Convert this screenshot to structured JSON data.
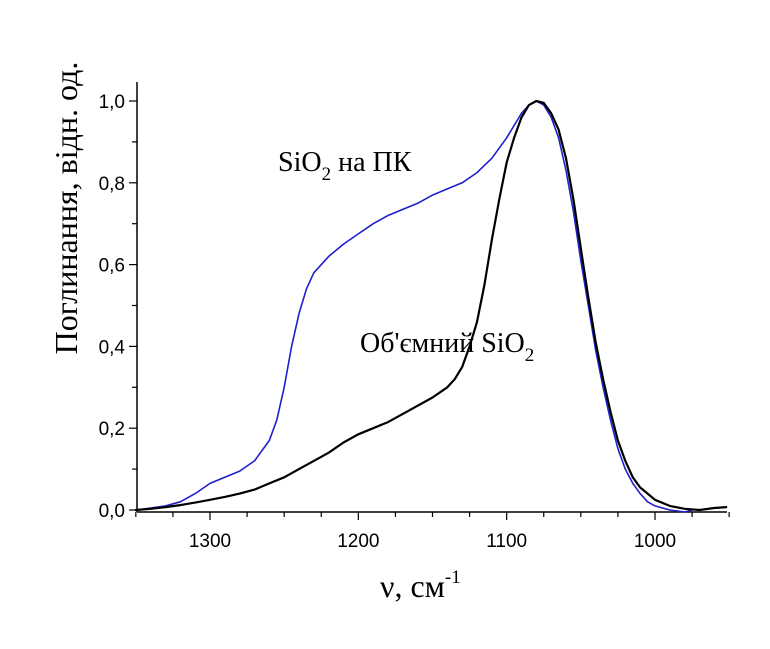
{
  "chart_data": {
    "type": "line",
    "title": "",
    "xlabel": "ν, см",
    "xlabel_superscript": "-1",
    "ylabel": "Поглинання, відн. од.",
    "xlim": [
      1350,
      950
    ],
    "ylim": [
      0,
      1.05
    ],
    "x_reversed": true,
    "grid": false,
    "x_ticks": [
      1300,
      1200,
      1100,
      1000
    ],
    "x_tick_labels": [
      "1300",
      "1200",
      "1100",
      "1000"
    ],
    "y_ticks": [
      0,
      0.2,
      0.4,
      0.6,
      0.8,
      1.0
    ],
    "y_tick_labels": [
      "0,0",
      "0,2",
      "0,4",
      "0,6",
      "0,8",
      "1,0"
    ],
    "series": [
      {
        "label_main": "SiO",
        "label_sub": "2",
        "label_suffix": " на ПК",
        "color": "#1f1fcc",
        "points": [
          [
            1350,
            0.0
          ],
          [
            1340,
            0.005
          ],
          [
            1330,
            0.01
          ],
          [
            1320,
            0.02
          ],
          [
            1310,
            0.04
          ],
          [
            1300,
            0.065
          ],
          [
            1290,
            0.08
          ],
          [
            1280,
            0.095
          ],
          [
            1270,
            0.12
          ],
          [
            1260,
            0.17
          ],
          [
            1255,
            0.22
          ],
          [
            1250,
            0.3
          ],
          [
            1245,
            0.4
          ],
          [
            1240,
            0.48
          ],
          [
            1235,
            0.54
          ],
          [
            1230,
            0.58
          ],
          [
            1220,
            0.62
          ],
          [
            1210,
            0.65
          ],
          [
            1200,
            0.675
          ],
          [
            1190,
            0.7
          ],
          [
            1180,
            0.72
          ],
          [
            1170,
            0.735
          ],
          [
            1160,
            0.75
          ],
          [
            1150,
            0.77
          ],
          [
            1140,
            0.785
          ],
          [
            1130,
            0.8
          ],
          [
            1120,
            0.825
          ],
          [
            1110,
            0.86
          ],
          [
            1100,
            0.91
          ],
          [
            1095,
            0.94
          ],
          [
            1090,
            0.97
          ],
          [
            1085,
            0.99
          ],
          [
            1080,
            1.0
          ],
          [
            1075,
            0.99
          ],
          [
            1070,
            0.96
          ],
          [
            1065,
            0.91
          ],
          [
            1060,
            0.83
          ],
          [
            1055,
            0.73
          ],
          [
            1050,
            0.61
          ],
          [
            1045,
            0.5
          ],
          [
            1040,
            0.39
          ],
          [
            1035,
            0.3
          ],
          [
            1030,
            0.22
          ],
          [
            1025,
            0.15
          ],
          [
            1020,
            0.1
          ],
          [
            1015,
            0.065
          ],
          [
            1010,
            0.04
          ],
          [
            1005,
            0.02
          ],
          [
            1000,
            0.01
          ],
          [
            990,
            0.0
          ],
          [
            980,
            -0.005
          ],
          [
            975,
            0.0
          ]
        ]
      },
      {
        "label_main": "Об'ємний SiO",
        "label_sub": "2",
        "label_suffix": "",
        "color": "#000000",
        "points": [
          [
            1350,
            0.0
          ],
          [
            1340,
            0.003
          ],
          [
            1330,
            0.007
          ],
          [
            1320,
            0.012
          ],
          [
            1310,
            0.018
          ],
          [
            1300,
            0.025
          ],
          [
            1290,
            0.032
          ],
          [
            1280,
            0.04
          ],
          [
            1270,
            0.05
          ],
          [
            1260,
            0.065
          ],
          [
            1250,
            0.08
          ],
          [
            1240,
            0.1
          ],
          [
            1230,
            0.12
          ],
          [
            1220,
            0.14
          ],
          [
            1210,
            0.165
          ],
          [
            1200,
            0.185
          ],
          [
            1190,
            0.2
          ],
          [
            1180,
            0.215
          ],
          [
            1170,
            0.235
          ],
          [
            1160,
            0.255
          ],
          [
            1150,
            0.275
          ],
          [
            1140,
            0.3
          ],
          [
            1135,
            0.32
          ],
          [
            1130,
            0.35
          ],
          [
            1125,
            0.4
          ],
          [
            1120,
            0.46
          ],
          [
            1115,
            0.55
          ],
          [
            1110,
            0.66
          ],
          [
            1105,
            0.76
          ],
          [
            1100,
            0.85
          ],
          [
            1095,
            0.91
          ],
          [
            1090,
            0.96
          ],
          [
            1085,
            0.99
          ],
          [
            1080,
            1.0
          ],
          [
            1075,
            0.995
          ],
          [
            1070,
            0.97
          ],
          [
            1065,
            0.93
          ],
          [
            1060,
            0.86
          ],
          [
            1055,
            0.76
          ],
          [
            1050,
            0.64
          ],
          [
            1045,
            0.52
          ],
          [
            1040,
            0.41
          ],
          [
            1035,
            0.32
          ],
          [
            1030,
            0.24
          ],
          [
            1025,
            0.17
          ],
          [
            1020,
            0.12
          ],
          [
            1015,
            0.08
          ],
          [
            1010,
            0.055
          ],
          [
            1005,
            0.04
          ],
          [
            1000,
            0.025
          ],
          [
            990,
            0.01
          ],
          [
            980,
            0.003
          ],
          [
            970,
            0.0
          ],
          [
            960,
            0.005
          ],
          [
            952,
            0.007
          ]
        ]
      }
    ]
  }
}
